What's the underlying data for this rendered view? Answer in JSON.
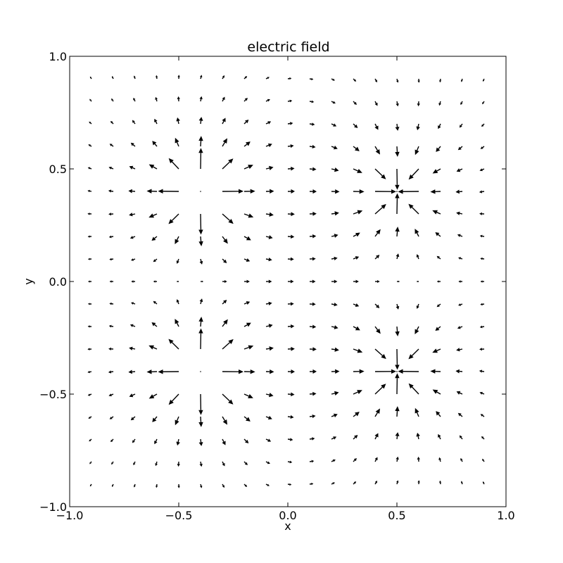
{
  "chart_data": {
    "type": "quiver",
    "title": "electric field",
    "xlabel": "x",
    "ylabel": "y",
    "xlim": [
      -1.0,
      1.0
    ],
    "ylim": [
      -1.0,
      1.0
    ],
    "grid": false,
    "x_ticks": [
      -1.0,
      -0.5,
      0.0,
      0.5,
      1.0
    ],
    "y_ticks": [
      -1.0,
      -0.5,
      0.0,
      0.5,
      1.0
    ],
    "x_tick_labels": [
      "−1.0",
      "−0.5",
      "0.0",
      "0.5",
      "1.0"
    ],
    "y_tick_labels": [
      "−1.0",
      "−0.5",
      "0.0",
      "0.5",
      "1.0"
    ],
    "grid_x": [
      -0.9,
      -0.8,
      -0.7,
      -0.6,
      -0.5,
      -0.4,
      -0.3,
      -0.2,
      -0.1,
      0.0,
      0.1,
      0.2,
      0.3,
      0.4,
      0.5,
      0.6,
      0.7,
      0.8,
      0.9
    ],
    "grid_y": [
      -0.9,
      -0.8,
      -0.7,
      -0.6,
      -0.5,
      -0.4,
      -0.3,
      -0.2,
      -0.1,
      0.0,
      0.1,
      0.2,
      0.3,
      0.4,
      0.5,
      0.6,
      0.7,
      0.8,
      0.9
    ],
    "charges": [
      {
        "x": -0.4,
        "y": 0.4,
        "q": 1
      },
      {
        "x": -0.4,
        "y": -0.4,
        "q": 1
      },
      {
        "x": 0.5,
        "y": 0.4,
        "q": -1
      },
      {
        "x": 0.5,
        "y": -0.4,
        "q": -1
      }
    ],
    "arrow_color": "#000000"
  }
}
